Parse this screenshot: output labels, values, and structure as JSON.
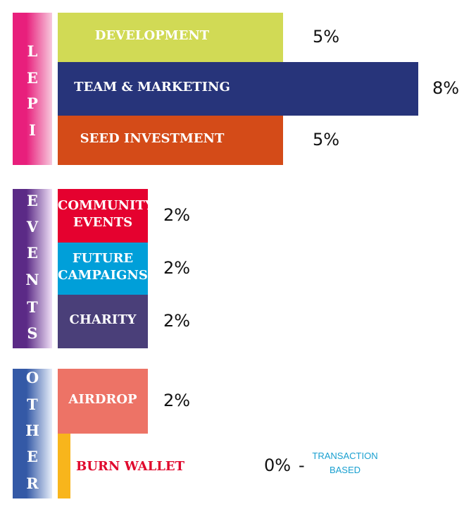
{
  "chart_data": {
    "type": "bar",
    "unit": "%",
    "groups": [
      {
        "label": "LEPI",
        "letters": [
          "L",
          "E",
          "P",
          "I"
        ],
        "colors": [
          "#e81f7c",
          "#f7c9dd"
        ],
        "items": [
          {
            "label": "DEVELOPMENT",
            "value": 5,
            "display": "5%",
            "color": "#d1da55"
          },
          {
            "label": "TEAM & MARKETING",
            "value": 8,
            "display": "8%",
            "color": "#27347a"
          },
          {
            "label": "SEED INVESTMENT",
            "value": 5,
            "display": "5%",
            "color": "#d44b18"
          }
        ]
      },
      {
        "label": "EVENTS",
        "letters": [
          "E",
          "V",
          "E",
          "N",
          "T",
          "S"
        ],
        "colors": [
          "#5b2a86",
          "#f0e0f7"
        ],
        "items": [
          {
            "label": "COMMUNITY EVENTS",
            "lines": [
              "COMMUNITY",
              "EVENTS"
            ],
            "value": 2,
            "display": "2%",
            "color": "#e5012f"
          },
          {
            "label": "FUTURE CAMPAIGNS",
            "lines": [
              "FUTURE",
              "CAMPAIGNS"
            ],
            "value": 2,
            "display": "2%",
            "color": "#009fd9"
          },
          {
            "label": "CHARITY",
            "value": 2,
            "display": "2%",
            "color": "#4a3f79"
          }
        ]
      },
      {
        "label": "OTHER",
        "letters": [
          "O",
          "T",
          "H",
          "E",
          "R"
        ],
        "colors": [
          "#3459a6",
          "#e7eefa"
        ],
        "items": [
          {
            "label": "AIRDROP",
            "value": 2,
            "display": "2%",
            "color": "#ed7366"
          },
          {
            "label": "BURN WALLET",
            "value": 0,
            "display": "0%",
            "color": "#f8b51c",
            "note": [
              "TRANSACTION",
              "BASED"
            ]
          }
        ]
      }
    ]
  }
}
